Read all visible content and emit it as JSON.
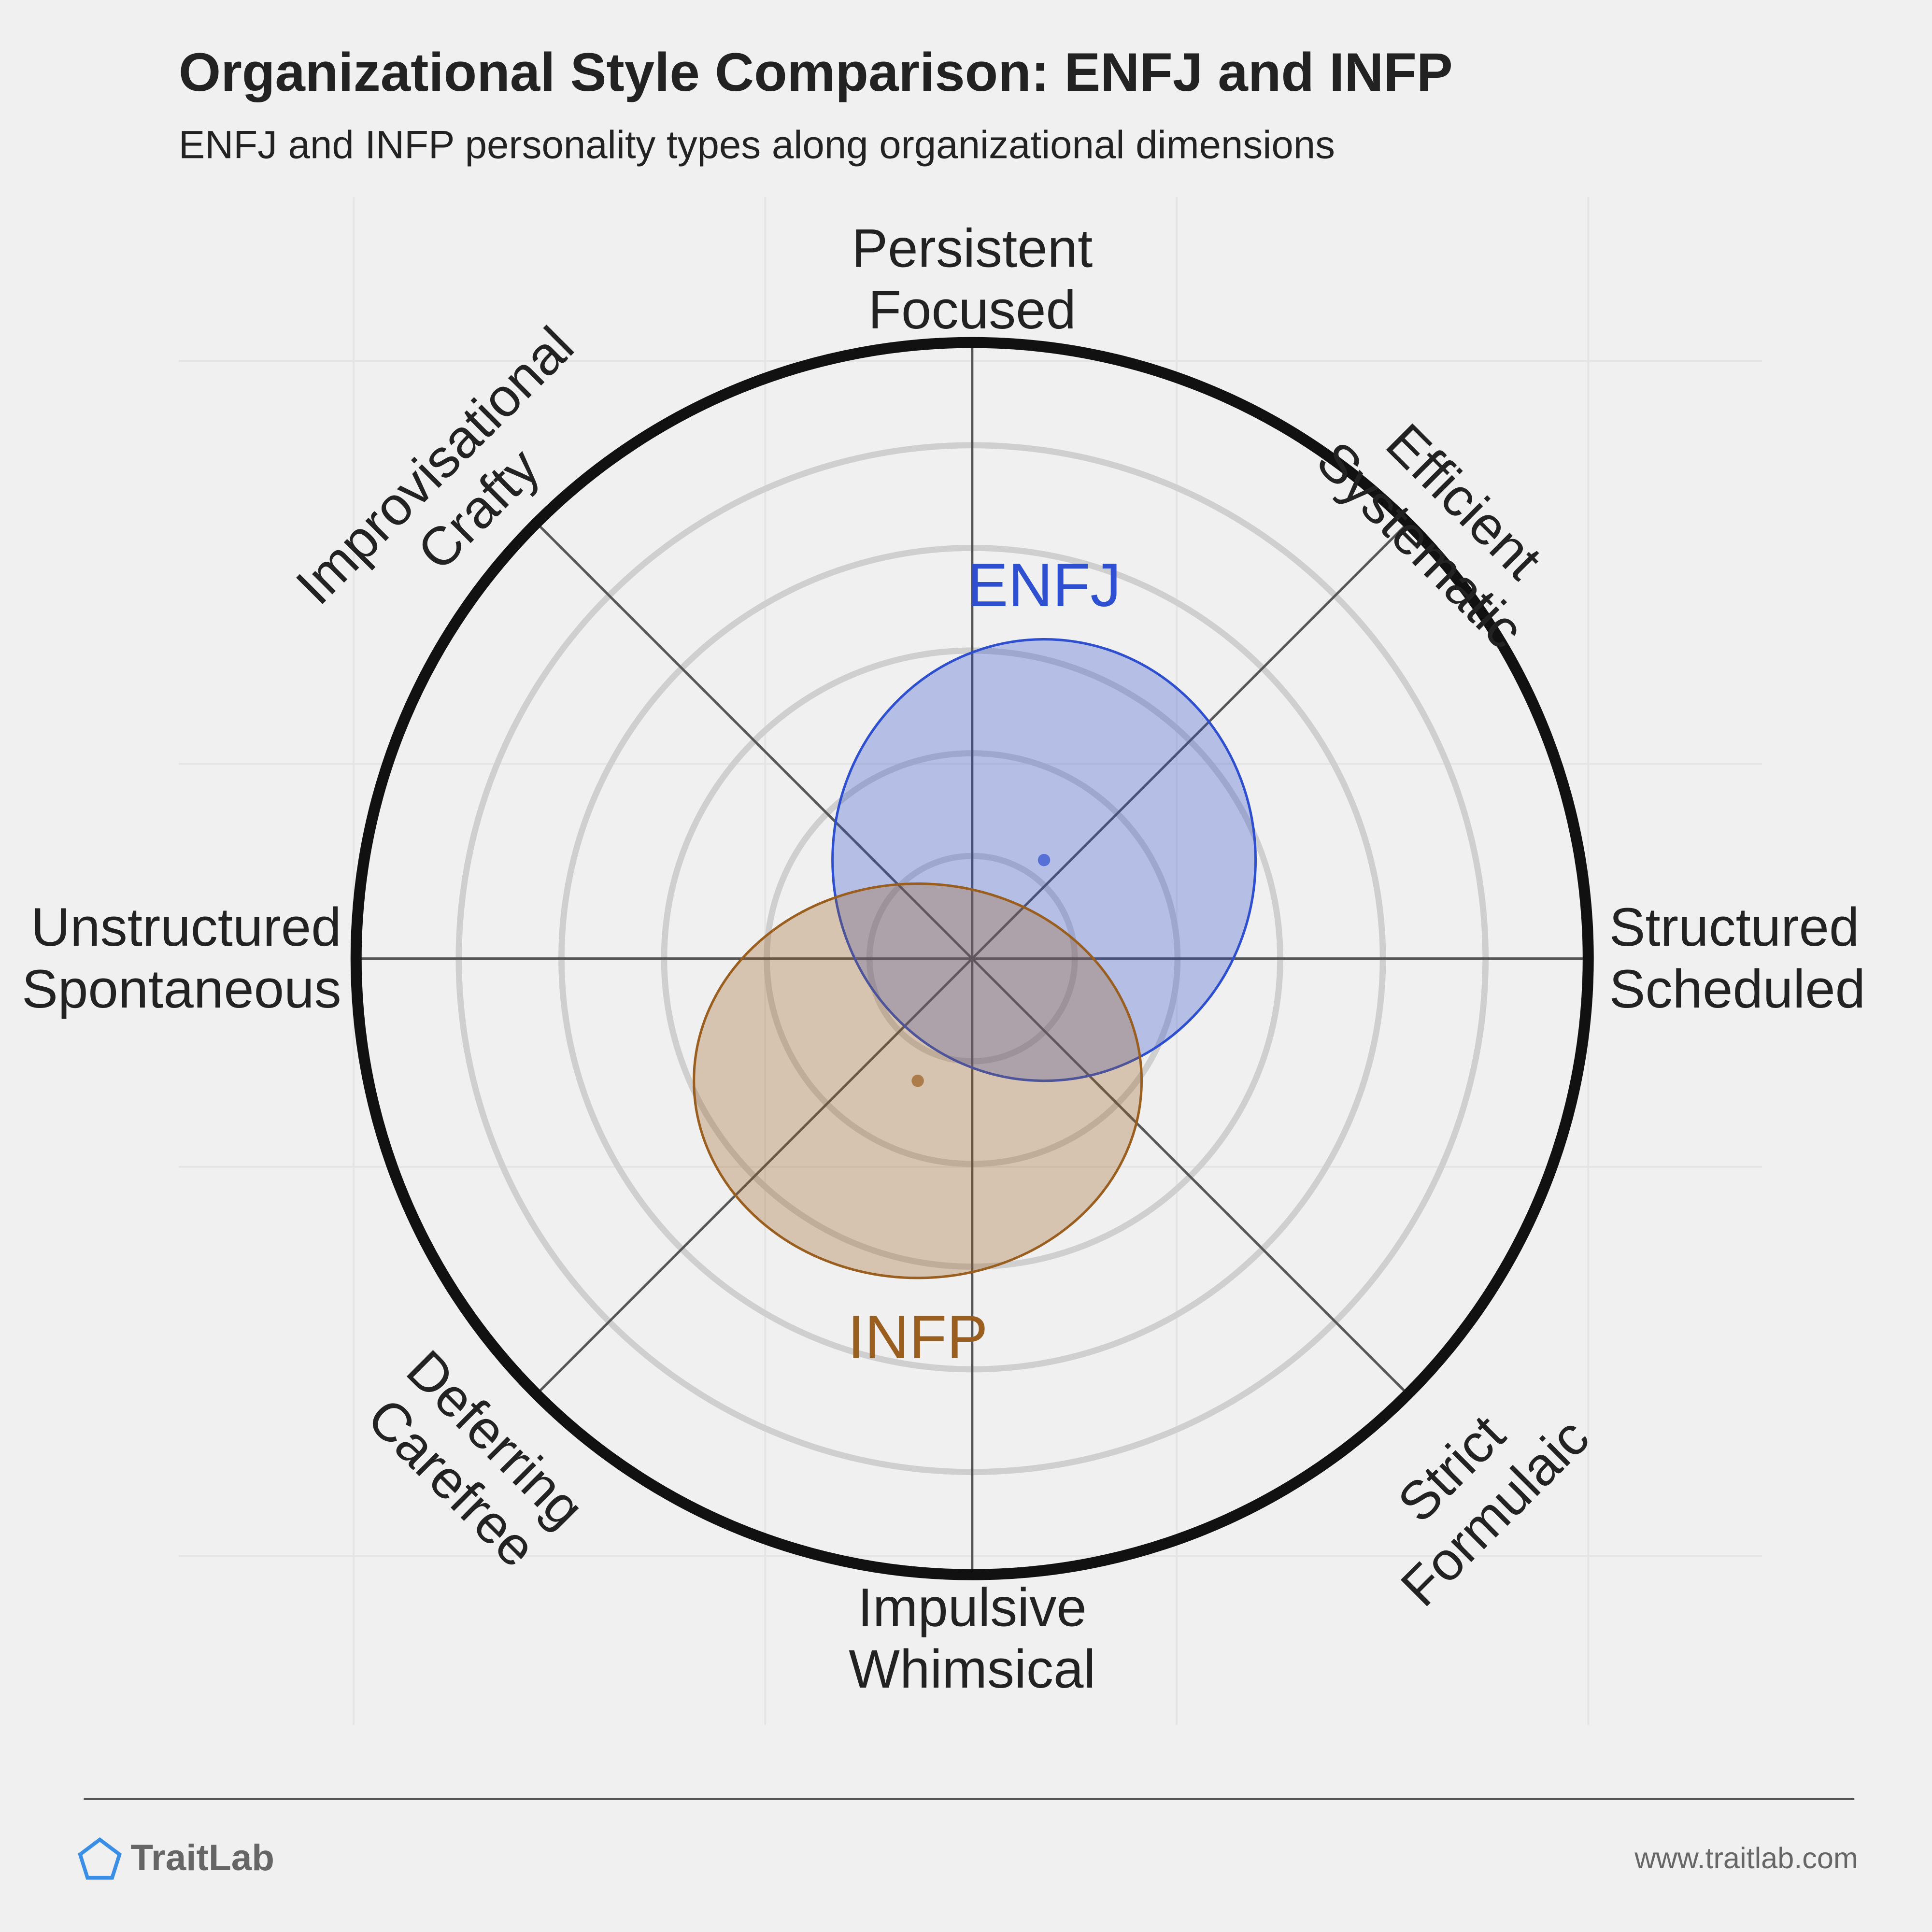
{
  "chart_data": {
    "type": "polar-ellipse",
    "title": "Organizational Style Comparison: ENFJ and INFP",
    "subtitle": "ENFJ and INFP personality types along organizational dimensions",
    "axes": [
      [
        "Persistent",
        "Focused"
      ],
      [
        "Efficient",
        "Systematic"
      ],
      [
        "Structured",
        "Scheduled"
      ],
      [
        "Strict",
        "Formulaic"
      ],
      [
        "Impulsive",
        "Whimsical"
      ],
      [
        "Deferring",
        "Carefree"
      ],
      [
        "Unstructured",
        "Spontaneous"
      ],
      [
        "Improvisational",
        "Crafty"
      ]
    ],
    "rlim": [
      0,
      6
    ],
    "rticks": [
      1,
      2,
      3,
      4,
      5
    ],
    "series": [
      {
        "name": "ENFJ",
        "color": "#2d4fd0",
        "x": 0.7,
        "y": 0.96,
        "rx": 2.06,
        "ry": 2.15
      },
      {
        "name": "INFP",
        "color": "#9a5f1f",
        "x": -0.53,
        "y": -1.19,
        "rx": 2.18,
        "ry": 1.92
      }
    ]
  },
  "footer": {
    "brand": "TraitLab",
    "url": "www.traitlab.com"
  }
}
